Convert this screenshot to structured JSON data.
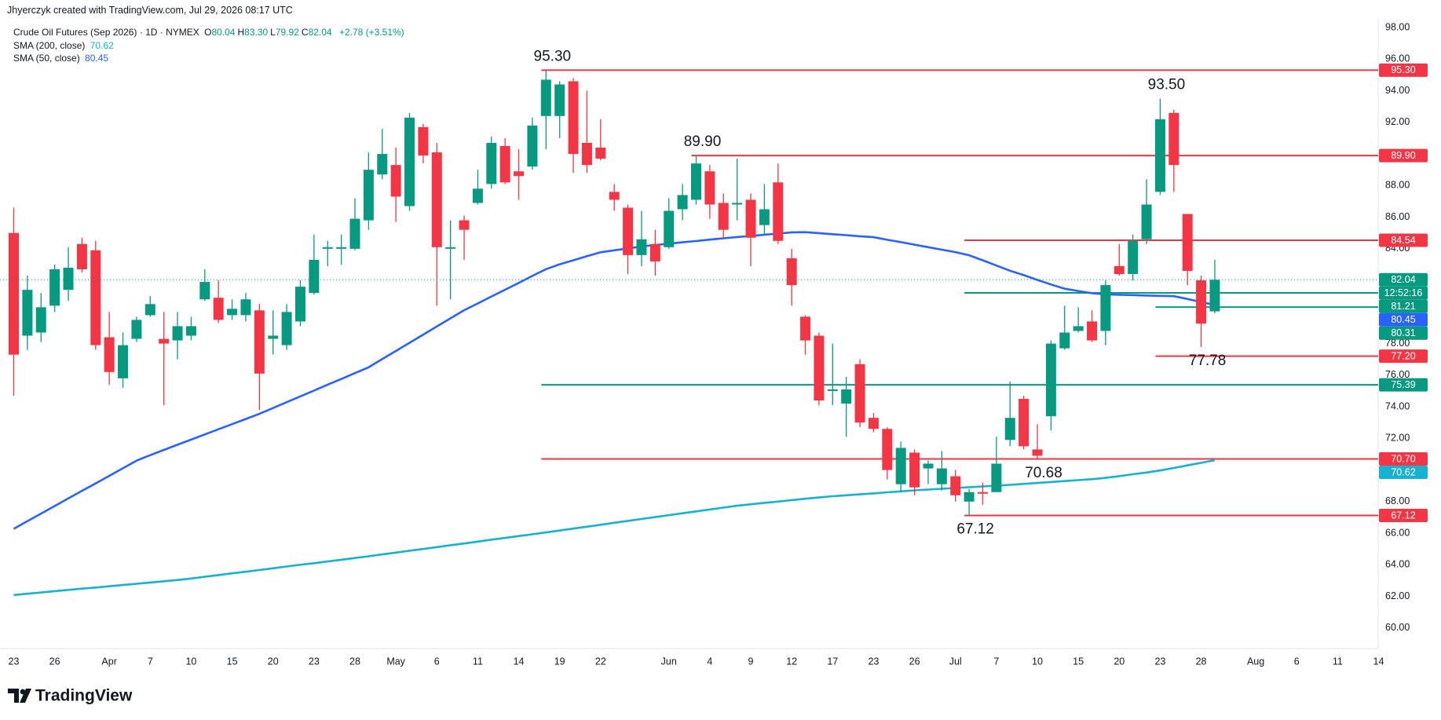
{
  "header": {
    "credit": "Jhyerczyk created with TradingView.com, Jul 29, 2026 08:17 UTC",
    "quote": [
      {
        "label": "O",
        "value": "80.04"
      },
      {
        "label": "H",
        "value": "83.30"
      },
      {
        "label": "L",
        "value": "79.92"
      },
      {
        "label": "C",
        "value": "82.04"
      }
    ],
    "change": "+2.78 (+3.51%)"
  },
  "footer": {
    "brand": "TradingView"
  },
  "chart_data": {
    "type": "candlestick",
    "title": "Crude Oil Futures (Sep 2026) · 1D · NYMEX",
    "up_color": "#089981",
    "down_color": "#f23645",
    "categories": [
      "23",
      null,
      null,
      "26",
      null,
      null,
      null,
      "Apr",
      null,
      null,
      "7",
      null,
      null,
      "10",
      null,
      null,
      "15",
      null,
      null,
      "20",
      null,
      null,
      "23",
      null,
      null,
      "28",
      null,
      null,
      "May",
      null,
      null,
      "6",
      null,
      null,
      "11",
      null,
      null,
      "14",
      null,
      null,
      "19",
      null,
      null,
      "22",
      null,
      null,
      null,
      null,
      "Jun",
      null,
      null,
      "4",
      null,
      null,
      "9",
      null,
      null,
      "12",
      null,
      null,
      "17",
      null,
      null,
      "23",
      null,
      null,
      "26",
      null,
      null,
      "Jul",
      null,
      null,
      "7",
      null,
      null,
      "10",
      null,
      null,
      "15",
      null,
      null,
      "20",
      null,
      null,
      "23",
      null,
      null,
      "28",
      null,
      null,
      null,
      "Aug",
      null,
      null,
      "6",
      null,
      null,
      "11",
      null,
      null,
      "14"
    ],
    "open": [
      85.0,
      78.5,
      78.7,
      80.4,
      81.4,
      84.3,
      83.9,
      78.4,
      75.8,
      78.3,
      79.8,
      78.3,
      78.2,
      78.5,
      80.8,
      80.9,
      79.8,
      79.8,
      80.1,
      78.3,
      77.9,
      79.4,
      81.2,
      84.0,
      84.0,
      84.0,
      85.8,
      88.7,
      89.3,
      86.7,
      91.7,
      90.1,
      84.0,
      85.8,
      86.9,
      88.1,
      90.5,
      88.9,
      89.2,
      92.4,
      92.4,
      94.6,
      90.7,
      90.4,
      87.6,
      86.6,
      83.6,
      84.3,
      84.1,
      86.5,
      87.1,
      88.9,
      86.9,
      86.8,
      87.1,
      85.5,
      88.2,
      83.4,
      79.7,
      78.5,
      75.0,
      74.2,
      76.7,
      73.3,
      72.6,
      69.1,
      71.1,
      70.1,
      69.1,
      69.6,
      68.0,
      68.6,
      68.6,
      71.9,
      74.5,
      71.3,
      73.4,
      77.7,
      78.8,
      79.4,
      78.8,
      82.9,
      82.4,
      84.6,
      87.6,
      92.6,
      86.2,
      82.0,
      80.04,
      null,
      null,
      null,
      null,
      null,
      null,
      null,
      null,
      null,
      null,
      null,
      null
    ],
    "high": [
      86.6,
      82.3,
      81.2,
      83.0,
      84.1,
      84.7,
      84.5,
      80.0,
      78.7,
      79.7,
      81.0,
      80.0,
      80.0,
      79.7,
      82.7,
      82.0,
      80.8,
      81.2,
      80.5,
      80.1,
      80.5,
      82.0,
      84.9,
      84.5,
      84.9,
      87.2,
      90.1,
      91.6,
      90.4,
      92.6,
      91.9,
      90.7,
      85.8,
      86.1,
      89.0,
      91.1,
      91.0,
      90.3,
      92.3,
      95.3,
      94.6,
      94.8,
      94.0,
      92.2,
      88.1,
      86.8,
      86.4,
      85.2,
      87.2,
      88.1,
      89.9,
      89.3,
      87.5,
      89.7,
      87.5,
      88.1,
      89.4,
      84.0,
      79.8,
      78.7,
      78.0,
      75.9,
      77.0,
      73.6,
      72.7,
      71.8,
      71.3,
      70.6,
      71.2,
      70.0,
      68.8,
      69.2,
      72.1,
      75.6,
      74.7,
      72.9,
      78.2,
      80.4,
      80.3,
      80.1,
      82.0,
      84.3,
      84.9,
      88.4,
      93.5,
      92.8,
      86.2,
      82.3,
      83.3,
      null,
      null,
      null,
      null,
      null,
      null,
      null,
      null,
      null,
      null,
      null,
      null
    ],
    "low": [
      74.7,
      77.6,
      78.1,
      80.0,
      80.7,
      82.5,
      77.6,
      75.4,
      75.2,
      78.1,
      79.7,
      74.1,
      77.0,
      78.2,
      80.7,
      79.3,
      79.5,
      79.4,
      73.8,
      77.3,
      77.6,
      79.1,
      81.1,
      82.9,
      83.0,
      83.9,
      85.2,
      88.4,
      85.7,
      86.4,
      89.4,
      80.4,
      80.8,
      83.3,
      86.8,
      87.8,
      88.1,
      87.1,
      89.0,
      90.3,
      91.0,
      88.8,
      88.8,
      89.6,
      86.4,
      82.4,
      82.9,
      82.3,
      84.0,
      85.8,
      86.8,
      85.9,
      84.7,
      85.8,
      82.9,
      84.9,
      84.3,
      80.4,
      77.3,
      74.1,
      74.1,
      72.1,
      72.7,
      72.4,
      69.4,
      68.6,
      68.4,
      69.1,
      68.7,
      68.0,
      67.12,
      67.8,
      68.6,
      71.5,
      71.3,
      70.68,
      72.5,
      77.6,
      78.7,
      78.1,
      77.9,
      82.3,
      82.0,
      84.3,
      87.4,
      87.6,
      81.7,
      77.78,
      79.92,
      null,
      null,
      null,
      null,
      null,
      null,
      null,
      null,
      null,
      null,
      null,
      null
    ],
    "close": [
      77.3,
      81.4,
      80.3,
      82.7,
      82.8,
      82.7,
      77.9,
      76.2,
      77.9,
      79.5,
      80.5,
      78.0,
      79.1,
      79.1,
      81.9,
      79.5,
      80.2,
      80.8,
      76.1,
      78.5,
      80.0,
      81.6,
      83.3,
      84.1,
      84.1,
      85.9,
      89.0,
      90.0,
      87.3,
      92.3,
      89.9,
      84.1,
      84.1,
      85.2,
      87.8,
      90.7,
      88.2,
      88.6,
      91.8,
      94.7,
      94.4,
      90.0,
      89.3,
      89.7,
      87.1,
      83.6,
      84.6,
      83.2,
      86.4,
      87.4,
      89.4,
      86.8,
      85.2,
      86.9,
      84.7,
      86.5,
      84.5,
      81.7,
      78.2,
      74.4,
      75.1,
      75.1,
      73.0,
      72.6,
      70.0,
      71.4,
      68.9,
      70.4,
      70.1,
      68.4,
      68.6,
      68.5,
      70.4,
      73.3,
      71.5,
      70.9,
      78.0,
      78.7,
      79.1,
      78.2,
      81.7,
      82.4,
      84.5,
      86.8,
      92.2,
      89.3,
      82.6,
      79.26,
      82.04,
      null,
      null,
      null,
      null,
      null,
      null,
      null,
      null,
      null,
      null,
      null,
      null
    ],
    "countdown": "12:52:16",
    "series": [
      {
        "name": "SMA (200, close)",
        "color": "#17b2d0",
        "values": [
          62.09,
          62.17,
          62.25,
          62.33,
          62.41,
          62.49,
          62.56,
          62.64,
          62.72,
          62.8,
          62.88,
          62.96,
          63.04,
          63.13,
          63.24,
          63.35,
          63.46,
          63.56,
          63.67,
          63.78,
          63.89,
          64.0,
          64.1,
          64.21,
          64.32,
          64.43,
          64.54,
          64.66,
          64.77,
          64.89,
          65.0,
          65.12,
          65.24,
          65.35,
          65.47,
          65.59,
          65.7,
          65.82,
          65.93,
          66.05,
          66.17,
          66.29,
          66.41,
          66.53,
          66.66,
          66.78,
          66.9,
          67.02,
          67.14,
          67.26,
          67.38,
          67.5,
          67.62,
          67.74,
          67.83,
          67.92,
          68.0,
          68.09,
          68.18,
          68.26,
          68.34,
          68.4,
          68.46,
          68.52,
          68.59,
          68.65,
          68.71,
          68.76,
          68.81,
          68.86,
          68.91,
          68.96,
          69.01,
          69.06,
          69.12,
          69.18,
          69.24,
          69.3,
          69.36,
          69.42,
          69.5,
          69.61,
          69.73,
          69.84,
          69.97,
          70.13,
          70.29,
          70.45,
          70.62,
          null,
          null,
          null,
          null,
          null,
          null,
          null,
          null,
          null,
          null,
          null,
          null
        ]
      },
      {
        "name": "SMA (50, close)",
        "color": "#2962ff",
        "values": [
          66.28,
          66.76,
          67.24,
          67.72,
          68.2,
          68.68,
          69.15,
          69.63,
          70.11,
          70.59,
          70.94,
          71.27,
          71.6,
          71.92,
          72.25,
          72.58,
          72.9,
          73.23,
          73.55,
          73.92,
          74.29,
          74.66,
          75.03,
          75.4,
          75.76,
          76.13,
          76.5,
          77.02,
          77.53,
          78.05,
          78.56,
          79.08,
          79.6,
          80.11,
          80.54,
          80.98,
          81.41,
          81.84,
          82.28,
          82.71,
          83.02,
          83.27,
          83.53,
          83.78,
          83.9,
          84.02,
          84.15,
          84.24,
          84.32,
          84.41,
          84.49,
          84.58,
          84.66,
          84.74,
          84.81,
          84.89,
          84.96,
          85.04,
          85.05,
          84.99,
          84.92,
          84.86,
          84.79,
          84.73,
          84.57,
          84.42,
          84.26,
          84.1,
          83.94,
          83.79,
          83.59,
          83.27,
          82.94,
          82.61,
          82.33,
          82.03,
          81.74,
          81.47,
          81.33,
          81.19,
          81.11,
          81.09,
          81.07,
          81.04,
          81.02,
          81.0,
          80.82,
          80.63,
          80.45,
          null,
          null,
          null,
          null,
          null,
          null,
          null,
          null,
          null,
          null,
          null,
          null
        ]
      }
    ],
    "levels": [
      {
        "value": 95.3,
        "label": "95.30",
        "color": "#f23645",
        "from": 39
      },
      {
        "value": 89.9,
        "label": "89.90",
        "color": "#f23645",
        "from": 50
      },
      {
        "value": 84.54,
        "label": "84.54",
        "color": "#f23645",
        "from": 70
      },
      {
        "value": 81.21,
        "label": "81.21",
        "color": "#089981",
        "from": 70
      },
      {
        "value": 80.31,
        "label": "80.31",
        "color": "#089981",
        "from": 84
      },
      {
        "value": 77.2,
        "label": "77.20",
        "color": "#f23645",
        "from": 84
      },
      {
        "value": 75.39,
        "label": "75.39",
        "color": "#089981",
        "from": 39
      },
      {
        "value": 70.7,
        "label": "70.70",
        "color": "#f23645",
        "from": 39
      },
      {
        "value": 67.12,
        "label": "67.12",
        "color": "#f23645",
        "from": 70
      }
    ],
    "annotations": [
      {
        "value": 95.3,
        "label": "95.30",
        "x": 39,
        "position": "above"
      },
      {
        "value": 89.9,
        "label": "89.90",
        "x": 50,
        "position": "above"
      },
      {
        "value": 93.5,
        "label": "93.50",
        "x": 84,
        "position": "above"
      },
      {
        "value": 77.78,
        "label": "77.78",
        "x": 87,
        "position": "below"
      },
      {
        "value": 70.68,
        "label": "70.68",
        "x": 75,
        "position": "below"
      },
      {
        "value": 67.12,
        "label": "67.12",
        "x": 70,
        "position": "below"
      }
    ],
    "ylim": [
      58.7,
      98.6
    ],
    "yticks": [
      {
        "value": 60,
        "label": "60.00"
      },
      {
        "value": 62,
        "label": "62.00"
      },
      {
        "value": 64,
        "label": "64.00"
      },
      {
        "value": 66,
        "label": "66.00"
      },
      {
        "value": 68,
        "label": "68.00"
      },
      {
        "value": 70,
        "label": "70.00"
      },
      {
        "value": 72,
        "label": "72.00"
      },
      {
        "value": 74,
        "label": "74.00"
      },
      {
        "value": 76,
        "label": "76.00"
      },
      {
        "value": 78,
        "label": "78.00"
      },
      {
        "value": 80,
        "label": "80.00"
      },
      {
        "value": 82,
        "label": "82.00"
      },
      {
        "value": 84,
        "label": "84.00"
      },
      {
        "value": 86,
        "label": "86.00"
      },
      {
        "value": 88,
        "label": "88.00"
      },
      {
        "value": 90,
        "label": "90.00"
      },
      {
        "value": 92,
        "label": "92.00"
      },
      {
        "value": 94,
        "label": "94.00"
      },
      {
        "value": 96,
        "label": "96.00"
      },
      {
        "value": 98,
        "label": "98.00"
      }
    ],
    "grid": false
  }
}
